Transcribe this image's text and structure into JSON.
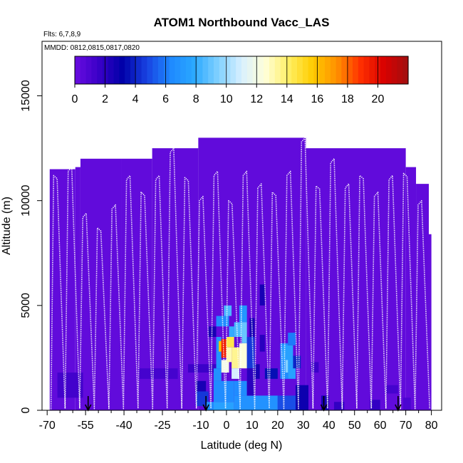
{
  "chart_data": {
    "type": "heatmap",
    "title": "ATOM1 Northbound Vacc_LAS",
    "flights_note": "Flts: 6,7,8,9",
    "dates_note": "MMDD: 0812,0815,0817,0820",
    "xlabel": "Latitude (deg N)",
    "ylabel": "Altitude (m)",
    "xlim": [
      -72,
      84
    ],
    "ylim": [
      0,
      17600
    ],
    "x_ticks": [
      -70,
      -55,
      -40,
      -25,
      -10,
      0,
      10,
      20,
      30,
      40,
      50,
      60,
      70,
      80
    ],
    "x_tick_labels": [
      "-70",
      "-55",
      "-40",
      "-25",
      "-10",
      "0",
      "10",
      "20",
      "30",
      "40",
      "50",
      "60",
      "70",
      "80"
    ],
    "x_minor_ticks": [
      -65,
      -60,
      -50,
      -45,
      -35,
      -30,
      -20,
      -15,
      -5,
      5,
      15,
      25,
      35,
      45,
      55,
      65,
      75
    ],
    "y_ticks": [
      0,
      5000,
      10000,
      15000
    ],
    "y_tick_labels": [
      "0",
      "5000",
      "10000",
      "15000"
    ],
    "colorbar": {
      "min": 0,
      "max": 22,
      "ticks": [
        0,
        2,
        4,
        6,
        8,
        10,
        12,
        14,
        16,
        18,
        20
      ],
      "tick_labels": [
        "0",
        "2",
        "4",
        "6",
        "8",
        "10",
        "12",
        "14",
        "16",
        "18",
        "20"
      ],
      "palette": [
        "#6a0de0",
        "#3a00c8",
        "#0000a8",
        "#1840e0",
        "#1e88ff",
        "#2aa8ff",
        "#7fd0ff",
        "#d8f0ff",
        "#ffffd8",
        "#ffee60",
        "#ffcc00",
        "#ff9000",
        "#ff3000",
        "#d80000",
        "#a01010"
      ]
    },
    "background_value": 0.3,
    "coverage_columns": [
      {
        "lat0": -69,
        "lat1": -59,
        "top": 11500
      },
      {
        "lat0": -59,
        "lat1": -57,
        "top": 11600
      },
      {
        "lat0": -57,
        "lat1": -41,
        "top": 12000
      },
      {
        "lat0": -41,
        "lat1": -29,
        "top": 12000
      },
      {
        "lat0": -29,
        "lat1": -11,
        "top": 12500
      },
      {
        "lat0": -11,
        "lat1": 31,
        "top": 13000
      },
      {
        "lat0": 31,
        "lat1": 70,
        "top": 12500
      },
      {
        "lat0": 70,
        "lat1": 74,
        "top": 11600
      },
      {
        "lat0": 74,
        "lat1": 79,
        "top": 10800
      },
      {
        "lat0": 79,
        "lat1": 80,
        "top": 8400
      }
    ],
    "cells": [
      {
        "lat0": -15,
        "lat1": -3,
        "alt0": 1800,
        "alt1": 2200,
        "v": 1.5
      },
      {
        "lat0": -34,
        "lat1": -19,
        "alt0": 1500,
        "alt1": 2000,
        "v": 1.2
      },
      {
        "lat0": -66,
        "lat1": -56,
        "alt0": 600,
        "alt1": 1800,
        "v": 1.3
      },
      {
        "lat0": -12,
        "lat1": -8,
        "alt0": 900,
        "alt1": 1400,
        "v": 2.5
      },
      {
        "lat0": -12,
        "lat1": -7,
        "alt0": 200,
        "alt1": 900,
        "v": 4.5
      },
      {
        "lat0": -8,
        "lat1": -5,
        "alt0": 0,
        "alt1": 400,
        "v": 6.5
      },
      {
        "lat0": -7,
        "lat1": -4,
        "alt0": 3500,
        "alt1": 4000,
        "v": 2.5
      },
      {
        "lat0": -5,
        "lat1": -2,
        "alt0": 1400,
        "alt1": 2000,
        "v": 6.8
      },
      {
        "lat0": -5,
        "lat1": 3,
        "alt0": 400,
        "alt1": 1400,
        "v": 6.5
      },
      {
        "lat0": -5,
        "lat1": 3,
        "alt0": 0,
        "alt1": 400,
        "v": 7.5
      },
      {
        "lat0": -4,
        "lat1": -2,
        "alt0": 2000,
        "alt1": 3500,
        "v": 7.0
      },
      {
        "lat0": -4,
        "lat1": 1,
        "alt0": 4000,
        "alt1": 4500,
        "v": 6.5
      },
      {
        "lat0": -3,
        "lat1": -1,
        "alt0": 2800,
        "alt1": 3300,
        "v": 16.0
      },
      {
        "lat0": -2,
        "lat1": 0,
        "alt0": 2500,
        "alt1": 3400,
        "v": 19.5
      },
      {
        "lat0": -2,
        "lat1": 1,
        "alt0": 1800,
        "alt1": 2400,
        "v": 12.0
      },
      {
        "lat0": -1,
        "lat1": 2,
        "alt0": 4500,
        "alt1": 5000,
        "v": 8.5
      },
      {
        "lat0": 0,
        "lat1": 3,
        "alt0": 3000,
        "alt1": 3500,
        "v": 14.5
      },
      {
        "lat0": 0,
        "lat1": 2,
        "alt0": 2300,
        "alt1": 3000,
        "v": 13.0
      },
      {
        "lat0": 1,
        "lat1": 3,
        "alt0": 3500,
        "alt1": 4000,
        "v": 8.0
      },
      {
        "lat0": 2,
        "lat1": 5,
        "alt0": 2000,
        "alt1": 3000,
        "v": 13.5
      },
      {
        "lat0": 2,
        "lat1": 5,
        "alt0": 1500,
        "alt1": 2000,
        "v": 11.0
      },
      {
        "lat0": 3,
        "lat1": 6,
        "alt0": 3500,
        "alt1": 4200,
        "v": 8.5
      },
      {
        "lat0": 3,
        "lat1": 8,
        "alt0": 700,
        "alt1": 1400,
        "v": 6.5
      },
      {
        "lat0": 3,
        "lat1": 20,
        "alt0": 0,
        "alt1": 700,
        "v": 6.8
      },
      {
        "lat0": 5,
        "lat1": 8,
        "alt0": 2000,
        "alt1": 3200,
        "v": 12.5
      },
      {
        "lat0": 5,
        "lat1": 8,
        "alt0": 4200,
        "alt1": 5000,
        "v": 7.0
      },
      {
        "lat0": 6,
        "lat1": 8,
        "alt0": 3200,
        "alt1": 4200,
        "v": 9.0
      },
      {
        "lat0": 8,
        "lat1": 11,
        "alt0": 2000,
        "alt1": 3500,
        "v": 4.5
      },
      {
        "lat0": 8,
        "lat1": 11,
        "alt0": 700,
        "alt1": 2000,
        "v": 2.0
      },
      {
        "lat0": 9,
        "lat1": 11,
        "alt0": 3500,
        "alt1": 4400,
        "v": 2.5
      },
      {
        "lat0": 11,
        "lat1": 13,
        "alt0": 1500,
        "alt1": 2200,
        "v": 2.5
      },
      {
        "lat0": 13,
        "lat1": 15,
        "alt0": 5000,
        "alt1": 6000,
        "v": 2.5
      },
      {
        "lat0": 13,
        "lat1": 15,
        "alt0": 2800,
        "alt1": 3600,
        "v": 2.0
      },
      {
        "lat0": 15,
        "lat1": 20,
        "alt0": 1500,
        "alt1": 2000,
        "v": 3.5
      },
      {
        "lat0": 20,
        "lat1": 27,
        "alt0": 0,
        "alt1": 700,
        "v": 5.0
      },
      {
        "lat0": 21,
        "lat1": 24,
        "alt0": 1500,
        "alt1": 3200,
        "v": 6.5
      },
      {
        "lat0": 22,
        "lat1": 26,
        "alt0": 2400,
        "alt1": 3100,
        "v": 7.5
      },
      {
        "lat0": 23,
        "lat1": 25,
        "alt0": 1800,
        "alt1": 2400,
        "v": 9.5
      },
      {
        "lat0": 24,
        "lat1": 27,
        "alt0": 1500,
        "alt1": 2500,
        "v": 7.5
      },
      {
        "lat0": 24,
        "lat1": 27,
        "alt0": 3100,
        "alt1": 3700,
        "v": 6.0
      },
      {
        "lat0": 26,
        "lat1": 29,
        "alt0": 2000,
        "alt1": 2600,
        "v": 4.0
      },
      {
        "lat0": 27,
        "lat1": 32,
        "alt0": 0,
        "alt1": 1200,
        "v": 2.8
      },
      {
        "lat0": 33,
        "lat1": 36,
        "alt0": 1800,
        "alt1": 2300,
        "v": 1.5
      },
      {
        "lat0": 37,
        "lat1": 40,
        "alt0": 0,
        "alt1": 700,
        "v": 2.5
      },
      {
        "lat0": 42,
        "lat1": 46,
        "alt0": 0,
        "alt1": 400,
        "v": 1.8
      },
      {
        "lat0": 56,
        "lat1": 60,
        "alt0": 0,
        "alt1": 500,
        "v": 1.8
      },
      {
        "lat0": 62,
        "lat1": 67,
        "alt0": 800,
        "alt1": 1200,
        "v": 1.2
      },
      {
        "lat0": 69,
        "lat1": 72,
        "alt0": 0,
        "alt1": 600,
        "v": 1.0
      }
    ],
    "track_tops": [
      11200,
      11400,
      9200,
      8700,
      9600,
      11000,
      10400,
      11000,
      12300,
      11100,
      10000,
      11200,
      10000,
      11200,
      10600,
      10400,
      11200,
      12800,
      10700,
      11800,
      10600,
      11200,
      10200,
      11000,
      11300,
      9800
    ],
    "arrow_latitudes": [
      -54,
      -8,
      38,
      67
    ]
  }
}
